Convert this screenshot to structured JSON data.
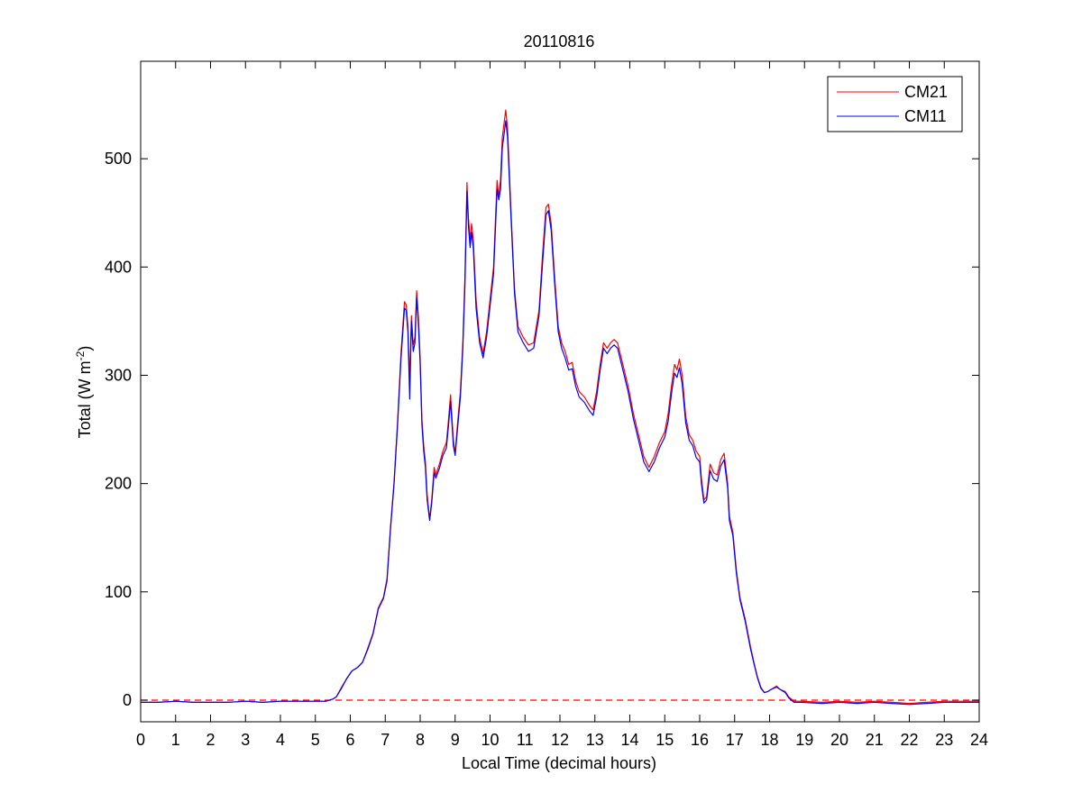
{
  "chart_data": {
    "type": "line",
    "title": "20110816",
    "xlabel": "Local Time (decimal hours)",
    "ylabel_main": "Total (W m",
    "ylabel_sup": "-2",
    "ylabel_end": ")",
    "xlim": [
      0,
      24
    ],
    "ylim": [
      -20,
      590
    ],
    "xticks": [
      0,
      1,
      2,
      3,
      4,
      5,
      6,
      7,
      8,
      9,
      10,
      11,
      12,
      13,
      14,
      15,
      16,
      17,
      18,
      19,
      20,
      21,
      22,
      23,
      24
    ],
    "yticks": [
      0,
      100,
      200,
      300,
      400,
      500
    ],
    "grid": false,
    "legend_position": "top-right",
    "reference_line": {
      "y": 0,
      "style": "dashed",
      "color": "#ff0000"
    },
    "series": [
      {
        "name": "CM21",
        "color": "#ff0000",
        "points": [
          [
            0,
            -2
          ],
          [
            0.5,
            -2
          ],
          [
            1,
            -1
          ],
          [
            1.5,
            -2
          ],
          [
            2,
            -2
          ],
          [
            2.5,
            -2
          ],
          [
            3,
            -1
          ],
          [
            3.5,
            -2
          ],
          [
            4,
            -1
          ],
          [
            4.5,
            -1
          ],
          [
            5,
            -1
          ],
          [
            5.3,
            -1
          ],
          [
            5.5,
            1
          ],
          [
            5.6,
            3
          ],
          [
            5.75,
            12
          ],
          [
            5.9,
            20
          ],
          [
            6.05,
            27
          ],
          [
            6.2,
            30
          ],
          [
            6.35,
            35
          ],
          [
            6.5,
            48
          ],
          [
            6.65,
            62
          ],
          [
            6.8,
            85
          ],
          [
            6.95,
            95
          ],
          [
            7.05,
            112
          ],
          [
            7.15,
            160
          ],
          [
            7.25,
            200
          ],
          [
            7.35,
            255
          ],
          [
            7.45,
            320
          ],
          [
            7.55,
            368
          ],
          [
            7.6,
            365
          ],
          [
            7.65,
            345
          ],
          [
            7.7,
            295
          ],
          [
            7.75,
            355
          ],
          [
            7.8,
            328
          ],
          [
            7.85,
            335
          ],
          [
            7.9,
            378
          ],
          [
            7.95,
            352
          ],
          [
            8,
            315
          ],
          [
            8.05,
            260
          ],
          [
            8.1,
            235
          ],
          [
            8.15,
            220
          ],
          [
            8.2,
            190
          ],
          [
            8.27,
            167
          ],
          [
            8.33,
            185
          ],
          [
            8.4,
            215
          ],
          [
            8.45,
            208
          ],
          [
            8.55,
            218
          ],
          [
            8.65,
            230
          ],
          [
            8.75,
            238
          ],
          [
            8.8,
            255
          ],
          [
            8.87,
            282
          ],
          [
            8.95,
            240
          ],
          [
            9,
            228
          ],
          [
            9.08,
            260
          ],
          [
            9.15,
            285
          ],
          [
            9.22,
            330
          ],
          [
            9.28,
            390
          ],
          [
            9.34,
            478
          ],
          [
            9.38,
            445
          ],
          [
            9.43,
            425
          ],
          [
            9.47,
            440
          ],
          [
            9.52,
            425
          ],
          [
            9.6,
            370
          ],
          [
            9.7,
            335
          ],
          [
            9.8,
            320
          ],
          [
            9.9,
            340
          ],
          [
            10,
            370
          ],
          [
            10.1,
            400
          ],
          [
            10.15,
            440
          ],
          [
            10.2,
            480
          ],
          [
            10.25,
            465
          ],
          [
            10.3,
            480
          ],
          [
            10.35,
            520
          ],
          [
            10.45,
            545
          ],
          [
            10.5,
            528
          ],
          [
            10.6,
            450
          ],
          [
            10.7,
            380
          ],
          [
            10.8,
            345
          ],
          [
            10.95,
            335
          ],
          [
            11.1,
            328
          ],
          [
            11.25,
            330
          ],
          [
            11.4,
            360
          ],
          [
            11.5,
            410
          ],
          [
            11.6,
            455
          ],
          [
            11.67,
            458
          ],
          [
            11.75,
            440
          ],
          [
            11.85,
            390
          ],
          [
            11.95,
            345
          ],
          [
            12.05,
            330
          ],
          [
            12.15,
            322
          ],
          [
            12.25,
            310
          ],
          [
            12.35,
            312
          ],
          [
            12.45,
            295
          ],
          [
            12.55,
            285
          ],
          [
            12.7,
            280
          ],
          [
            12.85,
            272
          ],
          [
            12.95,
            268
          ],
          [
            13.05,
            285
          ],
          [
            13.15,
            310
          ],
          [
            13.25,
            330
          ],
          [
            13.35,
            325
          ],
          [
            13.45,
            330
          ],
          [
            13.55,
            333
          ],
          [
            13.65,
            330
          ],
          [
            13.8,
            310
          ],
          [
            13.95,
            290
          ],
          [
            14.1,
            265
          ],
          [
            14.25,
            245
          ],
          [
            14.4,
            225
          ],
          [
            14.55,
            215
          ],
          [
            14.7,
            225
          ],
          [
            14.85,
            238
          ],
          [
            15,
            248
          ],
          [
            15.1,
            265
          ],
          [
            15.2,
            292
          ],
          [
            15.28,
            310
          ],
          [
            15.35,
            305
          ],
          [
            15.42,
            315
          ],
          [
            15.5,
            300
          ],
          [
            15.6,
            262
          ],
          [
            15.7,
            245
          ],
          [
            15.8,
            240
          ],
          [
            15.9,
            230
          ],
          [
            16,
            225
          ],
          [
            16.05,
            205
          ],
          [
            16.12,
            185
          ],
          [
            16.2,
            188
          ],
          [
            16.3,
            218
          ],
          [
            16.4,
            210
          ],
          [
            16.5,
            208
          ],
          [
            16.6,
            222
          ],
          [
            16.7,
            228
          ],
          [
            16.8,
            200
          ],
          [
            16.85,
            170
          ],
          [
            16.95,
            155
          ],
          [
            17.05,
            120
          ],
          [
            17.15,
            95
          ],
          [
            17.3,
            75
          ],
          [
            17.45,
            50
          ],
          [
            17.55,
            35
          ],
          [
            17.65,
            22
          ],
          [
            17.75,
            12
          ],
          [
            17.85,
            7
          ],
          [
            17.95,
            8
          ],
          [
            18.05,
            10
          ],
          [
            18.2,
            13
          ],
          [
            18.3,
            10
          ],
          [
            18.45,
            8
          ],
          [
            18.55,
            3
          ],
          [
            18.7,
            -1
          ],
          [
            18.9,
            -1
          ],
          [
            19.5,
            -2
          ],
          [
            20,
            -1
          ],
          [
            20.5,
            -2
          ],
          [
            21,
            -1
          ],
          [
            21.5,
            -2
          ],
          [
            22,
            -3
          ],
          [
            22.5,
            -2
          ],
          [
            23,
            -1
          ],
          [
            23.5,
            -1
          ],
          [
            24,
            -1
          ]
        ]
      },
      {
        "name": "CM11",
        "color": "#0000ff",
        "points": [
          [
            0,
            -2
          ],
          [
            0.5,
            -2
          ],
          [
            1,
            -1
          ],
          [
            1.5,
            -2
          ],
          [
            2,
            -2
          ],
          [
            2.5,
            -2
          ],
          [
            3,
            -1
          ],
          [
            3.5,
            -2
          ],
          [
            4,
            -1
          ],
          [
            4.5,
            -1
          ],
          [
            5,
            -1
          ],
          [
            5.3,
            -1
          ],
          [
            5.5,
            1
          ],
          [
            5.6,
            3
          ],
          [
            5.75,
            11
          ],
          [
            5.9,
            20
          ],
          [
            6.05,
            27
          ],
          [
            6.2,
            30
          ],
          [
            6.35,
            35
          ],
          [
            6.5,
            47
          ],
          [
            6.65,
            61
          ],
          [
            6.8,
            84
          ],
          [
            6.95,
            94
          ],
          [
            7.05,
            110
          ],
          [
            7.15,
            158
          ],
          [
            7.25,
            198
          ],
          [
            7.35,
            252
          ],
          [
            7.45,
            315
          ],
          [
            7.55,
            362
          ],
          [
            7.6,
            360
          ],
          [
            7.65,
            340
          ],
          [
            7.7,
            278
          ],
          [
            7.75,
            350
          ],
          [
            7.8,
            322
          ],
          [
            7.85,
            330
          ],
          [
            7.9,
            372
          ],
          [
            7.95,
            346
          ],
          [
            8,
            310
          ],
          [
            8.05,
            255
          ],
          [
            8.1,
            230
          ],
          [
            8.15,
            215
          ],
          [
            8.2,
            185
          ],
          [
            8.27,
            166
          ],
          [
            8.33,
            182
          ],
          [
            8.4,
            210
          ],
          [
            8.45,
            205
          ],
          [
            8.55,
            214
          ],
          [
            8.65,
            226
          ],
          [
            8.75,
            233
          ],
          [
            8.8,
            250
          ],
          [
            8.87,
            276
          ],
          [
            8.95,
            235
          ],
          [
            9,
            226
          ],
          [
            9.08,
            255
          ],
          [
            9.15,
            280
          ],
          [
            9.22,
            325
          ],
          [
            9.28,
            382
          ],
          [
            9.34,
            470
          ],
          [
            9.38,
            438
          ],
          [
            9.43,
            418
          ],
          [
            9.47,
            432
          ],
          [
            9.52,
            418
          ],
          [
            9.6,
            362
          ],
          [
            9.7,
            330
          ],
          [
            9.8,
            316
          ],
          [
            9.9,
            335
          ],
          [
            10,
            364
          ],
          [
            10.1,
            394
          ],
          [
            10.15,
            432
          ],
          [
            10.2,
            472
          ],
          [
            10.25,
            462
          ],
          [
            10.3,
            472
          ],
          [
            10.35,
            510
          ],
          [
            10.45,
            535
          ],
          [
            10.5,
            520
          ],
          [
            10.6,
            445
          ],
          [
            10.7,
            376
          ],
          [
            10.8,
            340
          ],
          [
            10.95,
            330
          ],
          [
            11.1,
            322
          ],
          [
            11.25,
            325
          ],
          [
            11.4,
            355
          ],
          [
            11.5,
            402
          ],
          [
            11.6,
            448
          ],
          [
            11.67,
            452
          ],
          [
            11.75,
            434
          ],
          [
            11.85,
            384
          ],
          [
            11.95,
            340
          ],
          [
            12.05,
            325
          ],
          [
            12.15,
            316
          ],
          [
            12.25,
            305
          ],
          [
            12.35,
            306
          ],
          [
            12.45,
            290
          ],
          [
            12.55,
            280
          ],
          [
            12.7,
            275
          ],
          [
            12.85,
            267
          ],
          [
            12.95,
            263
          ],
          [
            13.05,
            280
          ],
          [
            13.15,
            305
          ],
          [
            13.25,
            325
          ],
          [
            13.35,
            320
          ],
          [
            13.45,
            325
          ],
          [
            13.55,
            328
          ],
          [
            13.65,
            325
          ],
          [
            13.8,
            305
          ],
          [
            13.95,
            285
          ],
          [
            14.1,
            260
          ],
          [
            14.25,
            240
          ],
          [
            14.4,
            220
          ],
          [
            14.55,
            211
          ],
          [
            14.7,
            220
          ],
          [
            14.85,
            233
          ],
          [
            15,
            243
          ],
          [
            15.1,
            258
          ],
          [
            15.2,
            285
          ],
          [
            15.28,
            302
          ],
          [
            15.35,
            298
          ],
          [
            15.42,
            307
          ],
          [
            15.5,
            292
          ],
          [
            15.6,
            256
          ],
          [
            15.7,
            240
          ],
          [
            15.8,
            235
          ],
          [
            15.9,
            224
          ],
          [
            16,
            220
          ],
          [
            16.05,
            200
          ],
          [
            16.12,
            182
          ],
          [
            16.2,
            185
          ],
          [
            16.3,
            212
          ],
          [
            16.4,
            204
          ],
          [
            16.5,
            202
          ],
          [
            16.6,
            216
          ],
          [
            16.7,
            222
          ],
          [
            16.8,
            196
          ],
          [
            16.85,
            166
          ],
          [
            16.95,
            152
          ],
          [
            17.05,
            117
          ],
          [
            17.15,
            93
          ],
          [
            17.3,
            73
          ],
          [
            17.45,
            48
          ],
          [
            17.55,
            34
          ],
          [
            17.65,
            21
          ],
          [
            17.75,
            11
          ],
          [
            17.85,
            7
          ],
          [
            17.95,
            8
          ],
          [
            18.05,
            10
          ],
          [
            18.2,
            12
          ],
          [
            18.3,
            10
          ],
          [
            18.45,
            7
          ],
          [
            18.55,
            2
          ],
          [
            18.7,
            -2
          ],
          [
            18.9,
            -2
          ],
          [
            19.5,
            -3
          ],
          [
            20,
            -2
          ],
          [
            20.5,
            -3
          ],
          [
            21,
            -2
          ],
          [
            21.5,
            -3
          ],
          [
            22,
            -4
          ],
          [
            22.5,
            -3
          ],
          [
            23,
            -2
          ],
          [
            23.5,
            -2
          ],
          [
            24,
            -2
          ]
        ]
      }
    ]
  }
}
